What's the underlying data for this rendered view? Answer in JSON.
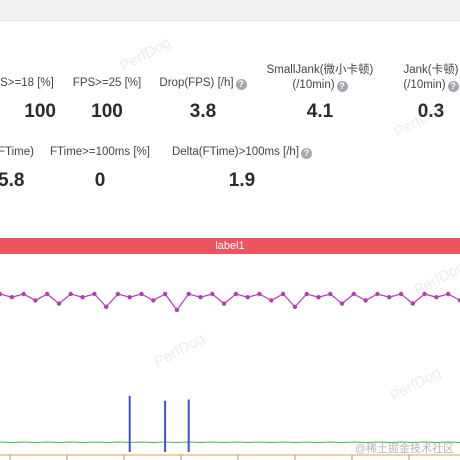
{
  "metrics": {
    "fps18": {
      "label": "S>=18 [%]",
      "value": "100"
    },
    "fps25": {
      "label": "FPS>=25 [%]",
      "value": "100"
    },
    "drop": {
      "label": "Drop(FPS) [/h]",
      "value": "3.8"
    },
    "smalljank": {
      "label1": "SmallJank(微小卡顿)",
      "label2": "(/10min)",
      "value": "4.1"
    },
    "jank": {
      "label1": "Jank(卡顿)",
      "label2": "(/10min)",
      "value": "0.3"
    },
    "ftime": {
      "label": "FTime)",
      "value": "5.8"
    },
    "ftime100": {
      "label": "FTime>=100ms [%]",
      "value": "0"
    },
    "delta": {
      "label": "Delta(FTime)>100ms [/h]",
      "value": "1.9"
    }
  },
  "help_glyph": "?",
  "watermarks": [
    "PerfDog",
    "PerfDog",
    "PerfDog",
    "PerfDog",
    "PerfDog"
  ],
  "label_bar": "label1",
  "credit": "@稀土掘金技术社区",
  "colors": {
    "label_bar": "#e9545f",
    "fps_series": "#b23fb2",
    "ftime_series": "#3b4fd8",
    "baseline_series": "#4caf50",
    "axis": "#e8a23c"
  },
  "chart_data": {
    "type": "line",
    "title": "",
    "xlabel": "",
    "ylabel": "",
    "series": [
      {
        "values": [
          60,
          59,
          60,
          58,
          60,
          57,
          60,
          59,
          60,
          56,
          60,
          59,
          60,
          58,
          60,
          55,
          60,
          59,
          60,
          57,
          60,
          59,
          60,
          58,
          60,
          56,
          60,
          59,
          60,
          57,
          60,
          58,
          60,
          59,
          60,
          57,
          60,
          59,
          60,
          58
        ]
      },
      {
        "values": [
          0,
          0,
          0,
          0,
          0,
          0,
          0,
          0,
          0,
          0,
          0,
          45,
          0,
          0,
          41,
          0,
          42,
          0,
          0,
          0,
          0,
          0,
          0,
          0,
          0,
          0,
          0,
          0,
          0,
          0,
          0,
          0,
          0,
          0,
          0,
          0,
          0,
          0,
          0,
          0
        ]
      }
    ]
  }
}
